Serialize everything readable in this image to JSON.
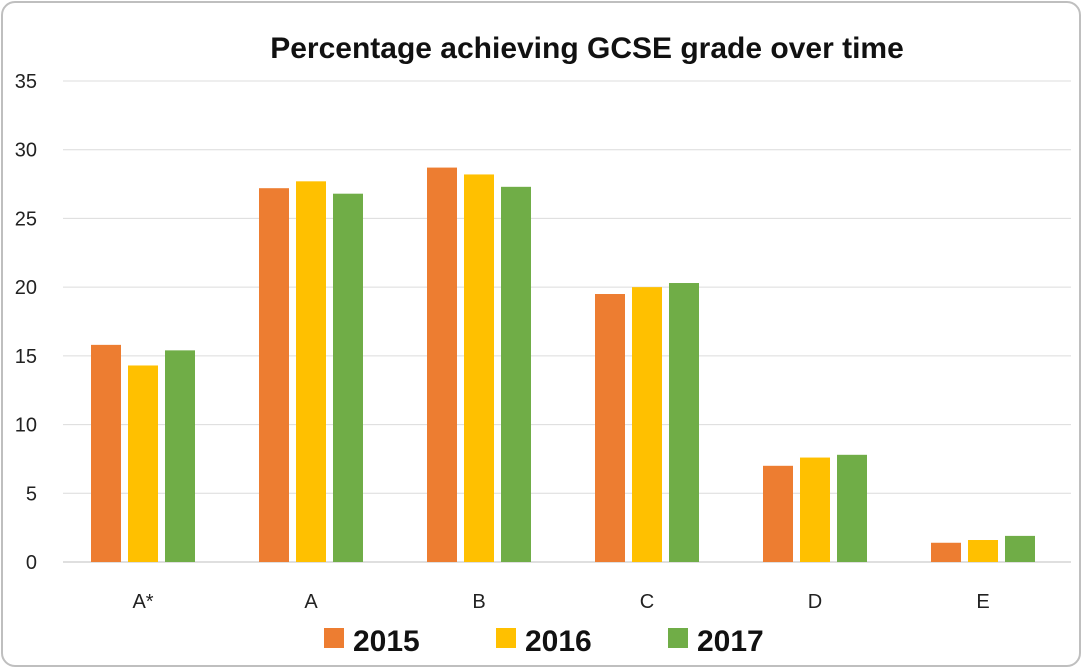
{
  "chart_data": {
    "type": "bar",
    "title": "Percentage achieving GCSE grade over time",
    "xlabel": "",
    "ylabel": "",
    "categories": [
      "A*",
      "A",
      "B",
      "C",
      "D",
      "E"
    ],
    "series": [
      {
        "name": "2015",
        "color": "#ed7d31",
        "values": [
          15.8,
          27.2,
          28.7,
          19.5,
          7.0,
          1.4
        ]
      },
      {
        "name": "2016",
        "color": "#ffc000",
        "values": [
          14.3,
          27.7,
          28.2,
          20.0,
          7.6,
          1.6
        ]
      },
      {
        "name": "2017",
        "color": "#70ad47",
        "values": [
          15.4,
          26.8,
          27.3,
          20.3,
          7.8,
          1.9
        ]
      }
    ],
    "ylim": [
      0,
      35
    ],
    "yticks": [
      "0",
      "5",
      "10",
      "15",
      "20",
      "25",
      "30",
      "35"
    ],
    "grid": true,
    "legend_position": "bottom"
  }
}
